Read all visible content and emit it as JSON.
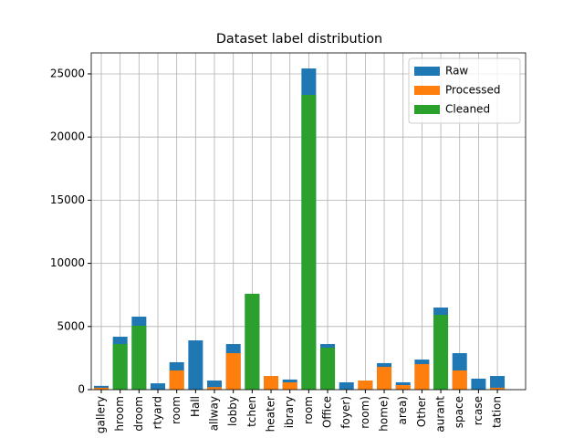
{
  "chart_data": {
    "type": "bar",
    "title": "Dataset label distribution",
    "categories": [
      "gallery",
      "hroom",
      "droom",
      "rtyard",
      "room",
      "Hall",
      "allway",
      "lobby",
      "tchen",
      "heater",
      "ibrary",
      "room",
      "Office",
      "foyer)",
      "room)",
      "home)",
      "area)",
      "Other",
      "aurant",
      "space",
      "rcase",
      "tation"
    ],
    "series": [
      {
        "name": "Raw",
        "color": "#1f77b4",
        "values": [
          300,
          4190,
          5780,
          500,
          2170,
          3900,
          720,
          3610,
          7590,
          1080,
          800,
          25430,
          3610,
          580,
          720,
          2100,
          580,
          2380,
          6500,
          2890,
          870,
          1080
        ]
      },
      {
        "name": "Processed",
        "color": "#ff7f0e",
        "values": [
          150,
          0,
          0,
          0,
          1520,
          0,
          200,
          2890,
          0,
          1080,
          580,
          0,
          0,
          0,
          720,
          1800,
          360,
          2020,
          0,
          1520,
          0,
          150
        ]
      },
      {
        "name": "Cleaned",
        "color": "#2ca02c",
        "values": [
          0,
          3610,
          5060,
          0,
          0,
          0,
          0,
          0,
          7590,
          0,
          0,
          23340,
          3320,
          0,
          0,
          0,
          0,
          0,
          5920,
          0,
          0,
          0
        ]
      }
    ],
    "ylim": [
      0,
      26660
    ],
    "yticks": [
      0,
      5000,
      10000,
      15000,
      20000,
      25000
    ],
    "grid": true,
    "legend": "upper right"
  }
}
